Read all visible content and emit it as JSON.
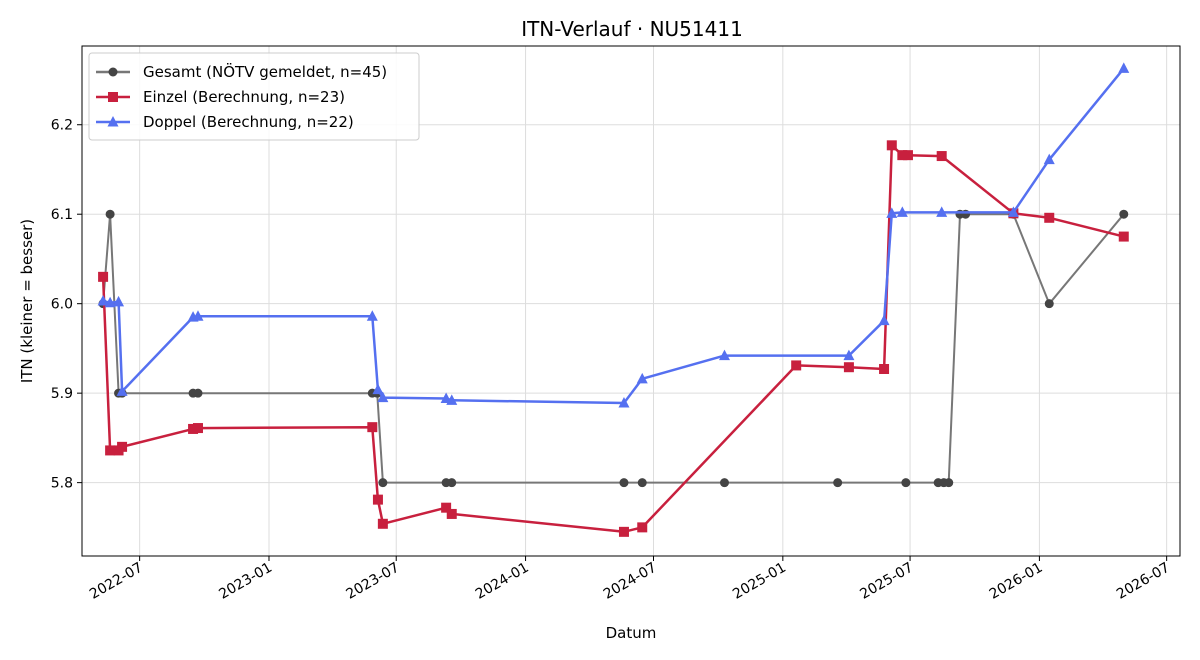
{
  "chart_data": {
    "type": "line",
    "title": "ITN-Verlauf · NU51411",
    "xlabel": "Datum",
    "ylabel": "ITN  (kleiner = besser)",
    "xlim": [
      "2022-04-10",
      "2026-07-20"
    ],
    "ylim": [
      5.718,
      6.288
    ],
    "x_ticks": [
      "2022-07",
      "2023-01",
      "2023-07",
      "2024-01",
      "2024-07",
      "2025-01",
      "2025-07",
      "2026-01",
      "2026-07"
    ],
    "y_ticks": [
      5.8,
      5.9,
      6.0,
      6.1,
      6.2
    ],
    "grid": true,
    "legend_position": "top-left",
    "series": [
      {
        "name": "Gesamt (NÖTV gemeldet, n=45)",
        "color": "#777777",
        "marker": "circle",
        "points": [
          {
            "x": "2022-05-10",
            "y": 6.0
          },
          {
            "x": "2022-05-20",
            "y": 6.1
          },
          {
            "x": "2022-06-01",
            "y": 5.9
          },
          {
            "x": "2022-06-06",
            "y": 5.9
          },
          {
            "x": "2022-09-15",
            "y": 5.9
          },
          {
            "x": "2022-09-22",
            "y": 5.9
          },
          {
            "x": "2023-05-28",
            "y": 5.9
          },
          {
            "x": "2023-06-04",
            "y": 5.9
          },
          {
            "x": "2023-06-12",
            "y": 5.8
          },
          {
            "x": "2023-09-10",
            "y": 5.8
          },
          {
            "x": "2023-09-18",
            "y": 5.8
          },
          {
            "x": "2024-05-20",
            "y": 5.8
          },
          {
            "x": "2024-06-15",
            "y": 5.8
          },
          {
            "x": "2024-10-10",
            "y": 5.8
          },
          {
            "x": "2025-03-20",
            "y": 5.8
          },
          {
            "x": "2025-06-25",
            "y": 5.8
          },
          {
            "x": "2025-08-10",
            "y": 5.8
          },
          {
            "x": "2025-08-18",
            "y": 5.8
          },
          {
            "x": "2025-08-25",
            "y": 5.8
          },
          {
            "x": "2025-09-10",
            "y": 6.1
          },
          {
            "x": "2025-09-18",
            "y": 6.1
          },
          {
            "x": "2025-11-25",
            "y": 6.1
          },
          {
            "x": "2026-01-15",
            "y": 6.0
          },
          {
            "x": "2026-05-01",
            "y": 6.1
          }
        ]
      },
      {
        "name": "Einzel (Berechnung, n=23)",
        "color": "#c8203e",
        "marker": "square",
        "points": [
          {
            "x": "2022-05-10",
            "y": 6.03
          },
          {
            "x": "2022-05-20",
            "y": 5.836
          },
          {
            "x": "2022-06-01",
            "y": 5.836
          },
          {
            "x": "2022-06-06",
            "y": 5.84
          },
          {
            "x": "2022-09-15",
            "y": 5.86
          },
          {
            "x": "2022-09-22",
            "y": 5.861
          },
          {
            "x": "2023-05-28",
            "y": 5.862
          },
          {
            "x": "2023-06-05",
            "y": 5.781
          },
          {
            "x": "2023-06-12",
            "y": 5.754
          },
          {
            "x": "2023-09-10",
            "y": 5.772
          },
          {
            "x": "2023-09-18",
            "y": 5.765
          },
          {
            "x": "2024-05-20",
            "y": 5.745
          },
          {
            "x": "2024-06-15",
            "y": 5.75
          },
          {
            "x": "2025-01-20",
            "y": 5.931
          },
          {
            "x": "2025-04-05",
            "y": 5.929
          },
          {
            "x": "2025-05-25",
            "y": 5.927
          },
          {
            "x": "2025-06-05",
            "y": 6.177
          },
          {
            "x": "2025-06-20",
            "y": 6.166
          },
          {
            "x": "2025-06-28",
            "y": 6.166
          },
          {
            "x": "2025-08-15",
            "y": 6.165
          },
          {
            "x": "2025-11-25",
            "y": 6.101
          },
          {
            "x": "2026-01-15",
            "y": 6.096
          },
          {
            "x": "2026-05-01",
            "y": 6.075
          }
        ]
      },
      {
        "name": "Doppel (Berechnung, n=22)",
        "color": "#5570f0",
        "marker": "triangle",
        "points": [
          {
            "x": "2022-05-10",
            "y": 6.003
          },
          {
            "x": "2022-05-20",
            "y": 6.001
          },
          {
            "x": "2022-06-01",
            "y": 6.002
          },
          {
            "x": "2022-06-06",
            "y": 5.902
          },
          {
            "x": "2022-09-15",
            "y": 5.985
          },
          {
            "x": "2022-09-22",
            "y": 5.986
          },
          {
            "x": "2023-05-28",
            "y": 5.986
          },
          {
            "x": "2023-06-05",
            "y": 5.904
          },
          {
            "x": "2023-06-12",
            "y": 5.895
          },
          {
            "x": "2023-09-10",
            "y": 5.894
          },
          {
            "x": "2023-09-18",
            "y": 5.892
          },
          {
            "x": "2024-05-20",
            "y": 5.889
          },
          {
            "x": "2024-06-15",
            "y": 5.916
          },
          {
            "x": "2024-10-10",
            "y": 5.942
          },
          {
            "x": "2025-04-05",
            "y": 5.942
          },
          {
            "x": "2025-05-25",
            "y": 5.981
          },
          {
            "x": "2025-06-05",
            "y": 6.101
          },
          {
            "x": "2025-06-20",
            "y": 6.102
          },
          {
            "x": "2025-08-15",
            "y": 6.102
          },
          {
            "x": "2025-11-25",
            "y": 6.102
          },
          {
            "x": "2026-01-15",
            "y": 6.161
          },
          {
            "x": "2026-05-01",
            "y": 6.263
          }
        ]
      }
    ]
  }
}
